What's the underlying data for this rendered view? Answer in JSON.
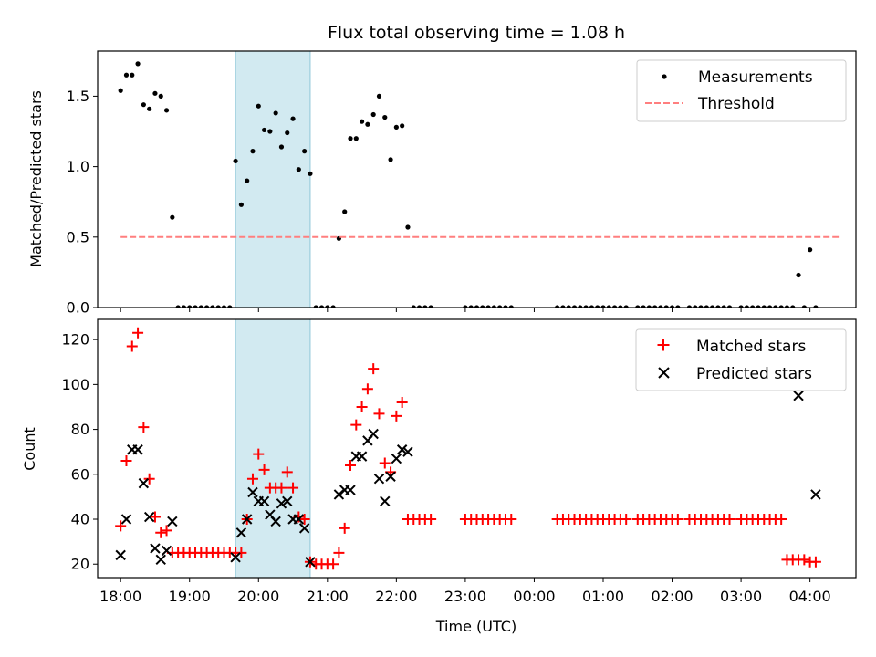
{
  "chart_data": [
    {
      "type": "scatter",
      "title": "Flux total observing time = 1.08 h",
      "xlabel": "",
      "ylabel": "Matched/Predicted stars",
      "xlim": [
        "17:40",
        "04:40"
      ],
      "ylim": [
        0,
        1.82
      ],
      "yticks": [
        "0.0",
        "0.5",
        "1.0",
        "1.5"
      ],
      "legend_position": "upper right",
      "highlight_span": {
        "from": "19:40",
        "to": "20:45",
        "color": "#add8e6"
      },
      "series": [
        {
          "name": "Measurements",
          "marker": "dot",
          "color": "#000000",
          "x": [
            "18:00",
            "18:05",
            "18:10",
            "18:15",
            "18:20",
            "18:25",
            "18:30",
            "18:35",
            "18:40",
            "18:45",
            "18:50",
            "18:55",
            "19:00",
            "19:05",
            "19:10",
            "19:15",
            "19:20",
            "19:25",
            "19:30",
            "19:35",
            "19:40",
            "19:45",
            "19:50",
            "19:55",
            "20:00",
            "20:05",
            "20:10",
            "20:15",
            "20:20",
            "20:25",
            "20:30",
            "20:35",
            "20:40",
            "20:45",
            "20:50",
            "20:55",
            "21:00",
            "21:05",
            "21:10",
            "21:15",
            "21:20",
            "21:25",
            "21:30",
            "21:35",
            "21:40",
            "21:45",
            "21:50",
            "21:55",
            "22:00",
            "22:05",
            "22:10",
            "22:15",
            "22:20",
            "22:25",
            "22:30",
            "23:00",
            "23:05",
            "23:10",
            "23:15",
            "23:20",
            "23:25",
            "23:30",
            "23:35",
            "23:40",
            "00:20",
            "00:25",
            "00:30",
            "00:35",
            "00:40",
            "00:45",
            "00:50",
            "00:55",
            "01:00",
            "01:05",
            "01:10",
            "01:15",
            "01:20",
            "01:30",
            "01:35",
            "01:40",
            "01:45",
            "01:50",
            "01:55",
            "02:00",
            "02:05",
            "02:15",
            "02:20",
            "02:25",
            "02:30",
            "02:35",
            "02:40",
            "02:45",
            "02:50",
            "03:00",
            "03:05",
            "03:10",
            "03:15",
            "03:20",
            "03:25",
            "03:30",
            "03:35",
            "03:40",
            "03:45",
            "03:50",
            "03:55",
            "04:00",
            "04:05"
          ],
          "values": [
            1.54,
            1.65,
            1.65,
            1.73,
            1.44,
            1.41,
            1.52,
            1.5,
            1.4,
            0.64,
            0,
            0,
            0,
            0,
            0,
            0,
            0,
            0,
            0,
            0,
            1.04,
            0.73,
            0.9,
            1.11,
            1.43,
            1.26,
            1.25,
            1.38,
            1.14,
            1.24,
            1.34,
            0.98,
            1.11,
            0.95,
            0,
            0,
            0,
            0,
            0.49,
            0.68,
            1.2,
            1.2,
            1.32,
            1.3,
            1.37,
            1.5,
            1.35,
            1.05,
            1.28,
            1.29,
            0.57,
            0,
            0,
            0,
            0,
            0,
            0,
            0,
            0,
            0,
            0,
            0,
            0,
            0,
            0,
            0,
            0,
            0,
            0,
            0,
            0,
            0,
            0,
            0,
            0,
            0,
            0,
            0,
            0,
            0,
            0,
            0,
            0,
            0,
            0,
            0,
            0,
            0,
            0,
            0,
            0,
            0,
            0,
            0,
            0,
            0,
            0,
            0,
            0,
            0,
            0,
            0,
            0,
            0.23,
            0,
            0.41,
            0
          ]
        },
        {
          "name": "Threshold",
          "type": "line",
          "style": "dashed",
          "color": "#ff7f7f",
          "x": [
            "18:00",
            "04:25"
          ],
          "values": [
            0.5,
            0.5
          ]
        }
      ]
    },
    {
      "type": "scatter",
      "title": "",
      "xlabel": "Time (UTC)",
      "ylabel": "Count",
      "xlim": [
        "17:40",
        "04:40"
      ],
      "ylim": [
        14,
        129
      ],
      "yticks": [
        "20",
        "40",
        "60",
        "80",
        "100",
        "120"
      ],
      "xticks": [
        "18:00",
        "19:00",
        "20:00",
        "21:00",
        "22:00",
        "23:00",
        "00:00",
        "01:00",
        "02:00",
        "03:00",
        "04:00"
      ],
      "legend_position": "upper right",
      "highlight_span": {
        "from": "19:40",
        "to": "20:45",
        "color": "#add8e6"
      },
      "series": [
        {
          "name": "Matched stars",
          "marker": "plus",
          "color": "#ff0000",
          "x": [
            "18:00",
            "18:05",
            "18:10",
            "18:15",
            "18:20",
            "18:25",
            "18:30",
            "18:35",
            "18:40",
            "18:45",
            "18:50",
            "18:55",
            "19:00",
            "19:05",
            "19:10",
            "19:15",
            "19:20",
            "19:25",
            "19:30",
            "19:35",
            "19:40",
            "19:45",
            "19:50",
            "19:55",
            "20:00",
            "20:05",
            "20:10",
            "20:15",
            "20:20",
            "20:25",
            "20:30",
            "20:35",
            "20:40",
            "20:45",
            "20:50",
            "20:55",
            "21:00",
            "21:05",
            "21:10",
            "21:15",
            "21:20",
            "21:25",
            "21:30",
            "21:35",
            "21:40",
            "21:45",
            "21:50",
            "21:55",
            "22:00",
            "22:05",
            "22:10",
            "22:15",
            "22:20",
            "22:25",
            "22:30",
            "23:00",
            "23:05",
            "23:10",
            "23:15",
            "23:20",
            "23:25",
            "23:30",
            "23:35",
            "23:40",
            "00:20",
            "00:25",
            "00:30",
            "00:35",
            "00:40",
            "00:45",
            "00:50",
            "00:55",
            "01:00",
            "01:05",
            "01:10",
            "01:15",
            "01:20",
            "01:30",
            "01:35",
            "01:40",
            "01:45",
            "01:50",
            "01:55",
            "02:00",
            "02:05",
            "02:15",
            "02:20",
            "02:25",
            "02:30",
            "02:35",
            "02:40",
            "02:45",
            "02:50",
            "03:00",
            "03:05",
            "03:10",
            "03:15",
            "03:20",
            "03:25",
            "03:30",
            "03:35",
            "03:40",
            "03:45",
            "03:50",
            "03:55",
            "04:00",
            "04:05"
          ],
          "values": [
            37,
            66,
            117,
            123,
            81,
            58,
            41,
            34,
            35,
            25,
            25,
            25,
            25,
            25,
            25,
            25,
            25,
            25,
            25,
            25,
            25,
            25,
            40,
            58,
            69,
            62,
            54,
            54,
            54,
            61,
            54,
            41,
            40,
            21,
            20,
            20,
            20,
            20,
            25,
            36,
            64,
            82,
            90,
            98,
            107,
            87,
            65,
            61,
            86,
            92,
            40,
            40,
            40,
            40,
            40,
            40,
            40,
            40,
            40,
            40,
            40,
            40,
            40,
            40,
            40,
            40,
            40,
            40,
            40,
            40,
            40,
            40,
            40,
            40,
            40,
            40,
            40,
            40,
            40,
            40,
            40,
            40,
            40,
            40,
            40,
            40,
            40,
            40,
            40,
            40,
            40,
            40,
            40,
            40,
            40,
            40,
            40,
            40,
            40,
            40,
            40,
            22,
            22,
            22,
            22,
            21,
            21
          ]
        },
        {
          "name": "Predicted stars",
          "marker": "x",
          "color": "#000000",
          "x": [
            "18:00",
            "18:05",
            "18:10",
            "18:15",
            "18:20",
            "18:25",
            "18:30",
            "18:35",
            "18:40",
            "18:45",
            "19:40",
            "19:45",
            "19:50",
            "19:55",
            "20:00",
            "20:05",
            "20:10",
            "20:15",
            "20:20",
            "20:25",
            "20:30",
            "20:35",
            "20:40",
            "20:45",
            "21:10",
            "21:15",
            "21:20",
            "21:25",
            "21:30",
            "21:35",
            "21:40",
            "21:45",
            "21:50",
            "21:55",
            "22:00",
            "22:05",
            "22:10",
            "03:50",
            "04:05"
          ],
          "values": [
            24,
            40,
            71,
            71,
            56,
            41,
            27,
            22,
            26,
            39,
            23,
            34,
            40,
            52,
            48,
            48,
            42,
            39,
            47,
            48,
            40,
            40,
            36,
            21,
            51,
            53,
            53,
            68,
            68,
            75,
            78,
            58,
            48,
            59,
            67,
            71,
            70,
            95,
            51
          ]
        }
      ]
    }
  ]
}
